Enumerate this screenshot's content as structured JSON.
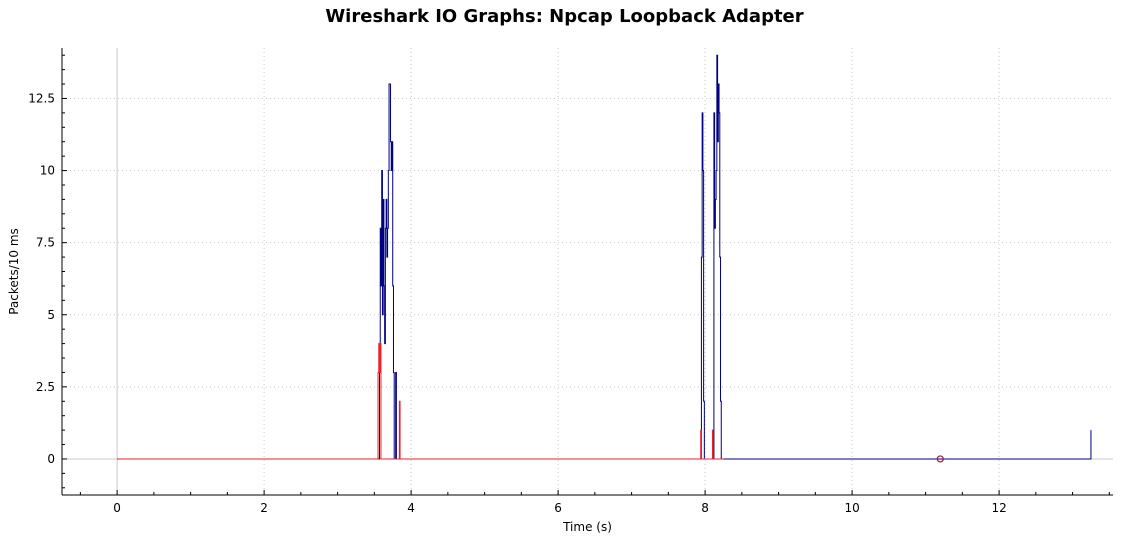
{
  "chart_data": {
    "type": "line",
    "title": "Wireshark IO Graphs: Npcap Loopback Adapter",
    "xlabel": "Time (s)",
    "ylabel": "Packets/10 ms",
    "xlim": [
      -0.75,
      13.55
    ],
    "ylim": [
      -1.25,
      14.25
    ],
    "x_ticks": [
      0,
      2,
      4,
      6,
      8,
      10,
      12
    ],
    "x_tick_labels": [
      "0",
      "2",
      "4",
      "6",
      "8",
      "10",
      "12"
    ],
    "y_ticks": [
      0,
      2.5,
      5,
      7.5,
      10,
      12.5
    ],
    "y_tick_labels": [
      "0",
      "2.5",
      "5",
      "7.5",
      "10",
      "12.5"
    ],
    "grid": true,
    "series": [
      {
        "color": "#000080",
        "x": [
          0,
          3.57,
          3.57,
          3.58,
          3.58,
          3.59,
          3.59,
          3.6,
          3.6,
          3.61,
          3.61,
          3.62,
          3.62,
          3.63,
          3.63,
          3.64,
          3.64,
          3.65,
          3.65,
          3.66,
          3.66,
          3.67,
          3.67,
          3.68,
          3.68,
          3.69,
          3.69,
          3.7,
          3.7,
          3.71,
          3.71,
          3.72,
          3.72,
          3.73,
          3.73,
          3.74,
          3.74,
          3.75,
          3.75,
          3.76,
          3.76,
          3.77,
          3.77,
          3.78,
          3.78,
          3.79,
          3.79,
          3.8,
          3.8,
          3.82,
          3.82,
          3.83,
          3.83,
          7.95,
          7.95,
          7.96,
          7.96,
          7.97,
          7.97,
          7.98,
          7.98,
          7.99,
          7.99,
          8.12,
          8.12,
          8.13,
          8.13,
          8.14,
          8.14,
          8.15,
          8.15,
          8.16,
          8.16,
          8.17,
          8.17,
          8.18,
          8.18,
          8.19,
          8.19,
          8.2,
          8.2,
          8.21,
          8.21,
          8.22,
          8.22,
          8.23,
          8.23,
          8.24,
          8.24,
          13.25,
          13.25
        ],
        "y": [
          0,
          0,
          3,
          3,
          8,
          8,
          6,
          6,
          10,
          10,
          5,
          5,
          9,
          9,
          6,
          6,
          4,
          4,
          8,
          8,
          9,
          9,
          7,
          7,
          8,
          8,
          10,
          10,
          13,
          13,
          13,
          13,
          11,
          11,
          10,
          10,
          11,
          11,
          6,
          6,
          3,
          3,
          0,
          0,
          0,
          0,
          3,
          3,
          0,
          0,
          0,
          0,
          0,
          0,
          7,
          7,
          12,
          12,
          10,
          10,
          2,
          2,
          0,
          0,
          12,
          12,
          8,
          8,
          9,
          9,
          10,
          10,
          14,
          14,
          11,
          11,
          13,
          13,
          12,
          12,
          7,
          7,
          2,
          2,
          0,
          0,
          0,
          0,
          0,
          0,
          1
        ]
      },
      {
        "color": "#e8232b",
        "x": [
          0,
          3.55,
          3.55,
          3.56,
          3.56,
          3.57,
          3.57,
          3.58,
          3.58,
          3.59,
          3.59,
          3.6,
          3.6,
          3.62,
          3.62,
          3.63,
          3.63,
          3.84,
          3.84,
          3.85,
          3.85,
          7.94,
          7.94,
          7.95,
          7.95,
          8.1,
          8.1,
          8.11,
          8.11,
          8.25
        ],
        "y": [
          0,
          0,
          3,
          3,
          4,
          4,
          3,
          3,
          4,
          4,
          0,
          0,
          0,
          0,
          0,
          0,
          0,
          0,
          2,
          2,
          0,
          0,
          1,
          1,
          0,
          0,
          1,
          1,
          0,
          0
        ]
      }
    ],
    "marker": {
      "x": 11.2,
      "y": 0,
      "color": "#a0172e"
    }
  }
}
